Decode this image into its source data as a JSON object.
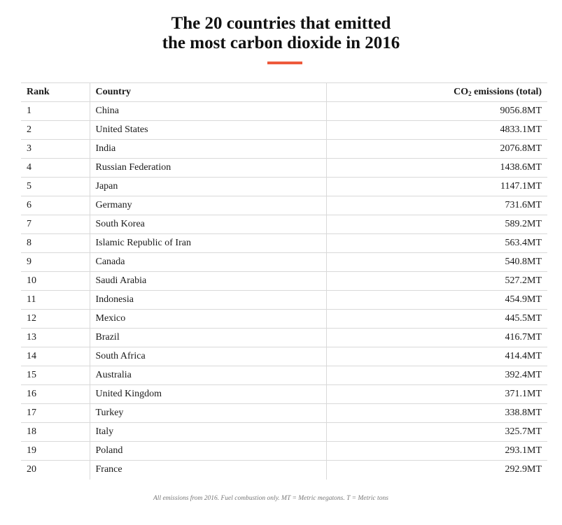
{
  "title": {
    "line1": "The 20 countries that emitted",
    "line2": "the most carbon dioxide in 2016"
  },
  "colors": {
    "accent": "#ee5a3c",
    "rule": "#d9d9d9"
  },
  "table": {
    "header_rank": "Rank",
    "header_country": "Country",
    "header_value_prefix": "CO",
    "header_value_sub": "2",
    "header_value_suffix": " emissions (total)",
    "rows": [
      {
        "rank": "1",
        "country": "China",
        "value": "9056.8MT"
      },
      {
        "rank": "2",
        "country": "United States",
        "value": "4833.1MT"
      },
      {
        "rank": "3",
        "country": "India",
        "value": "2076.8MT"
      },
      {
        "rank": "4",
        "country": "Russian Federation",
        "value": "1438.6MT"
      },
      {
        "rank": "5",
        "country": "Japan",
        "value": "1147.1MT"
      },
      {
        "rank": "6",
        "country": "Germany",
        "value": "731.6MT"
      },
      {
        "rank": "7",
        "country": "South Korea",
        "value": "589.2MT"
      },
      {
        "rank": "8",
        "country": "Islamic Republic of Iran",
        "value": "563.4MT"
      },
      {
        "rank": "9",
        "country": "Canada",
        "value": "540.8MT"
      },
      {
        "rank": "10",
        "country": "Saudi Arabia",
        "value": "527.2MT"
      },
      {
        "rank": "11",
        "country": "Indonesia",
        "value": "454.9MT"
      },
      {
        "rank": "12",
        "country": "Mexico",
        "value": "445.5MT"
      },
      {
        "rank": "13",
        "country": "Brazil",
        "value": "416.7MT"
      },
      {
        "rank": "14",
        "country": "South Africa",
        "value": "414.4MT"
      },
      {
        "rank": "15",
        "country": "Australia",
        "value": "392.4MT"
      },
      {
        "rank": "16",
        "country": "United Kingdom",
        "value": "371.1MT"
      },
      {
        "rank": "17",
        "country": "Turkey",
        "value": "338.8MT"
      },
      {
        "rank": "18",
        "country": "Italy",
        "value": "325.7MT"
      },
      {
        "rank": "19",
        "country": "Poland",
        "value": "293.1MT"
      },
      {
        "rank": "20",
        "country": "France",
        "value": "292.9MT"
      }
    ]
  },
  "footnote": "All emissions from 2016. Fuel combustion only. MT = Metric megatons. T = Metric tons",
  "chart_data": {
    "type": "table",
    "title": "The 20 countries that emitted the most carbon dioxide in 2016",
    "columns": [
      "Rank",
      "Country",
      "CO2 emissions (total)"
    ],
    "rows": [
      [
        1,
        "China",
        9056.8
      ],
      [
        2,
        "United States",
        4833.1
      ],
      [
        3,
        "India",
        2076.8
      ],
      [
        4,
        "Russian Federation",
        1438.6
      ],
      [
        5,
        "Japan",
        1147.1
      ],
      [
        6,
        "Germany",
        731.6
      ],
      [
        7,
        "South Korea",
        589.2
      ],
      [
        8,
        "Islamic Republic of Iran",
        563.4
      ],
      [
        9,
        "Canada",
        540.8
      ],
      [
        10,
        "Saudi Arabia",
        527.2
      ],
      [
        11,
        "Indonesia",
        454.9
      ],
      [
        12,
        "Mexico",
        445.5
      ],
      [
        13,
        "Brazil",
        416.7
      ],
      [
        14,
        "South Africa",
        414.4
      ],
      [
        15,
        "Australia",
        392.4
      ],
      [
        16,
        "United Kingdom",
        371.1
      ],
      [
        17,
        "Turkey",
        338.8
      ],
      [
        18,
        "Italy",
        325.7
      ],
      [
        19,
        "Poland",
        293.1
      ],
      [
        20,
        "France",
        292.9
      ]
    ],
    "unit": "MT"
  }
}
